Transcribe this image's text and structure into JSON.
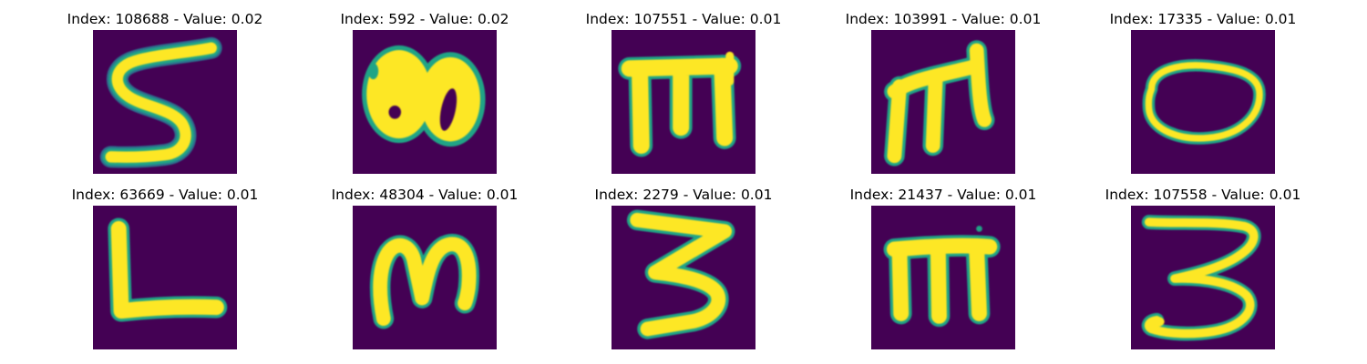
{
  "figure": {
    "colors": {
      "background": "#440154",
      "stroke_inner": "#fde725",
      "stroke_outer": "#20a486",
      "stroke_edge": "#2c728e"
    },
    "panels": [
      {
        "title": "Index: 108688 - Value: 0.02",
        "glyph": "letter-s"
      },
      {
        "title": "Index: 592 - Value: 0.02",
        "glyph": "blob-loops"
      },
      {
        "title": "Index: 107551 - Value: 0.01",
        "glyph": "letter-m-bar"
      },
      {
        "title": "Index: 103991 - Value: 0.01",
        "glyph": "letter-m-slanted"
      },
      {
        "title": "Index: 17335 - Value: 0.01",
        "glyph": "letter-o"
      },
      {
        "title": "Index: 63669 - Value: 0.01",
        "glyph": "letter-l"
      },
      {
        "title": "Index: 48304 - Value: 0.01",
        "glyph": "letter-m-script"
      },
      {
        "title": "Index: 2279 - Value: 0.01",
        "glyph": "digit-3-angular"
      },
      {
        "title": "Index: 21437 - Value: 0.01",
        "glyph": "letter-m-bar-2"
      },
      {
        "title": "Index: 107558 - Value: 0.01",
        "glyph": "digit-3-rounded"
      }
    ]
  }
}
